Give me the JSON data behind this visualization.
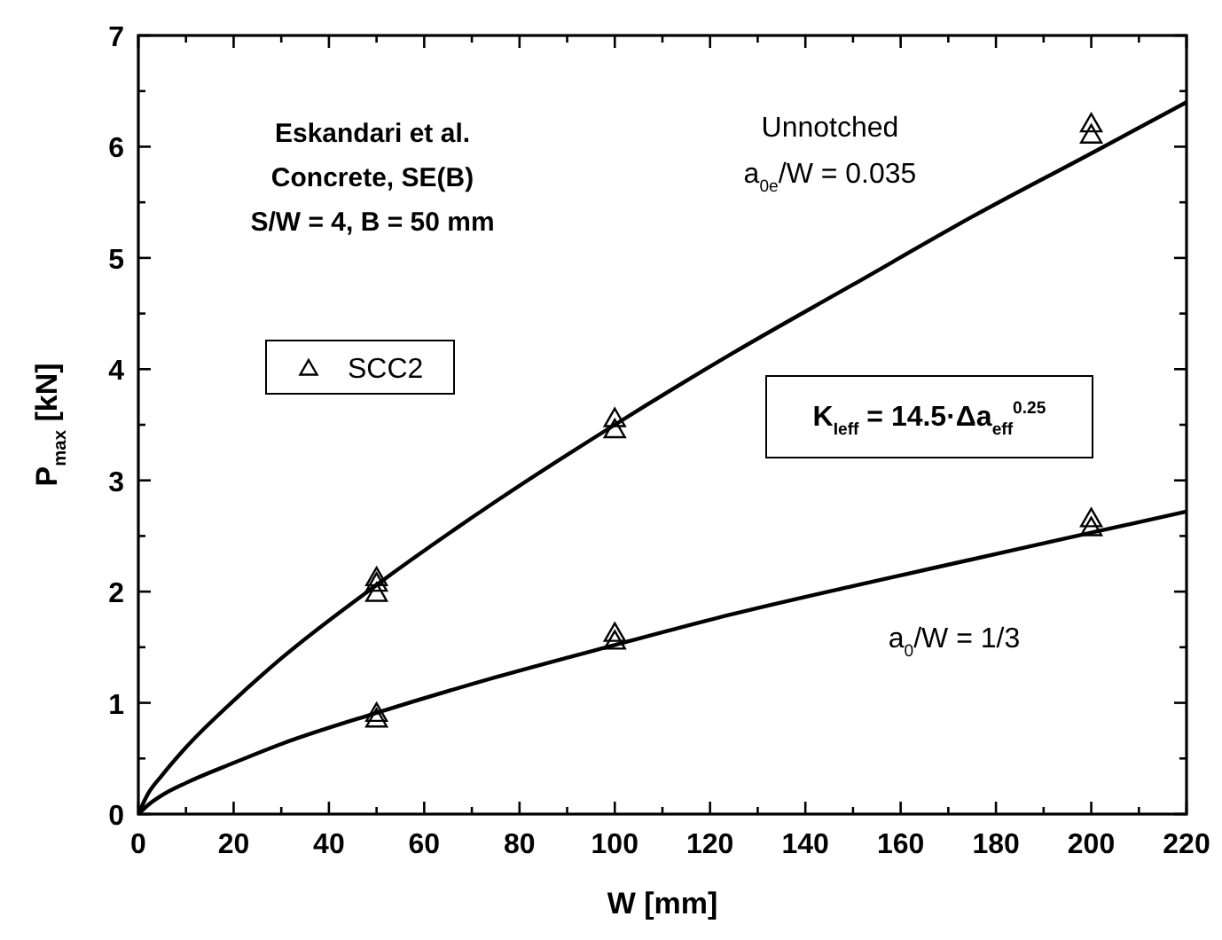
{
  "chart_data": {
    "type": "scatter",
    "xlabel": "W [mm]",
    "ylabel": "P$_{max}$ [kN]",
    "xlim": [
      0,
      220
    ],
    "ylim": [
      0,
      7
    ],
    "xticks": [
      0,
      {
        "value": 10,
        "label": null
      },
      20,
      {
        "value": 30,
        "label": null
      },
      40,
      {
        "value": 50,
        "label": null
      },
      60,
      {
        "value": 70,
        "label": null
      },
      80,
      {
        "value": 90,
        "label": null
      },
      100,
      {
        "value": 110,
        "label": null
      },
      120,
      {
        "value": 130,
        "label": null
      },
      140,
      {
        "value": 150,
        "label": null
      },
      160,
      {
        "value": 170,
        "label": null
      },
      180,
      {
        "value": 190,
        "label": null
      },
      200,
      {
        "value": 210,
        "label": null
      },
      220
    ],
    "yticks": [
      0,
      {
        "value": 0.5,
        "label": null
      },
      1,
      {
        "value": 1.5,
        "label": null
      },
      2,
      {
        "value": 2.5,
        "label": null
      },
      3,
      {
        "value": 3.5,
        "label": null
      },
      4,
      {
        "value": 4.5,
        "label": null
      },
      5,
      {
        "value": 5.5,
        "label": null
      },
      6,
      {
        "value": 6.5,
        "label": null
      },
      7
    ],
    "grid": false,
    "legend": "left",
    "marker": "triangle",
    "series": [
      {
        "name": "SCC2",
        "color": "#000000",
        "x": [
          50,
          50,
          50,
          100,
          100,
          200,
          200,
          50,
          50,
          100,
          100,
          200,
          200
        ],
        "values": [
          2.12,
          2.07,
          1.98,
          3.55,
          3.45,
          6.2,
          6.1,
          0.9,
          0.85,
          1.62,
          1.55,
          2.65,
          2.57
        ]
      },
      {
        "type": "line",
        "marker": "none",
        "color": "#000000",
        "line_style": "solid",
        "x": [
          0,
          2,
          5,
          10,
          20,
          30,
          50,
          75,
          100,
          125,
          150,
          175,
          200,
          220
        ],
        "values": [
          0,
          0.18,
          0.35,
          0.6,
          1.02,
          1.4,
          2.06,
          2.81,
          3.5,
          4.15,
          4.76,
          5.37,
          5.94,
          6.4
        ]
      },
      {
        "type": "line",
        "marker": "none",
        "color": "#000000",
        "line_style": "solid",
        "x": [
          0,
          2,
          5,
          10,
          20,
          30,
          50,
          75,
          100,
          125,
          150,
          175,
          200,
          220
        ],
        "values": [
          0,
          0.08,
          0.17,
          0.28,
          0.46,
          0.63,
          0.91,
          1.23,
          1.52,
          1.8,
          2.05,
          2.29,
          2.53,
          2.72
        ]
      }
    ],
    "annotations": [
      "Eskandari et al.",
      "Concrete, SE(B)",
      "S/W = 4, B = 50 mm",
      "Unnotched",
      "a$_{0e}$/W = 0.035",
      "K$_{Ieff}$ = 14.5·Δa$_{eff}$$^{0.25}$",
      "a$_{0}$/W = 1/3"
    ]
  }
}
